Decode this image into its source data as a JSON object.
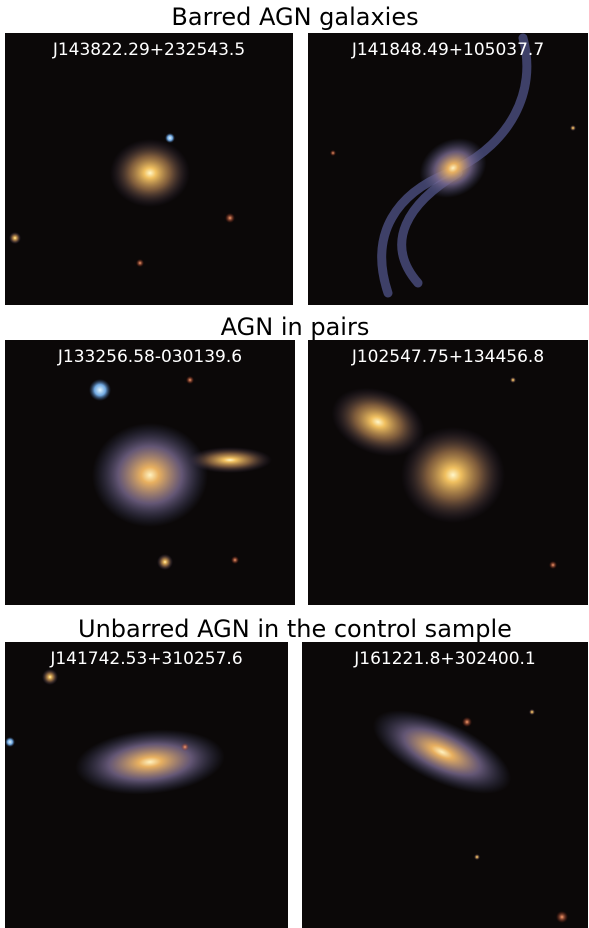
{
  "sections": [
    {
      "title": "Barred AGN galaxies",
      "panels": [
        {
          "label": "J143822.29+232543.5"
        },
        {
          "label": "J141848.49+105037.7"
        }
      ]
    },
    {
      "title": "AGN in pairs",
      "panels": [
        {
          "label": "J133256.58-030139.6"
        },
        {
          "label": "J102547.75+134456.8"
        }
      ]
    },
    {
      "title": "Unbarred AGN in the control sample",
      "panels": [
        {
          "label": "J141742.53+310257.6"
        },
        {
          "label": "J161221.8+302400.1"
        }
      ]
    }
  ]
}
